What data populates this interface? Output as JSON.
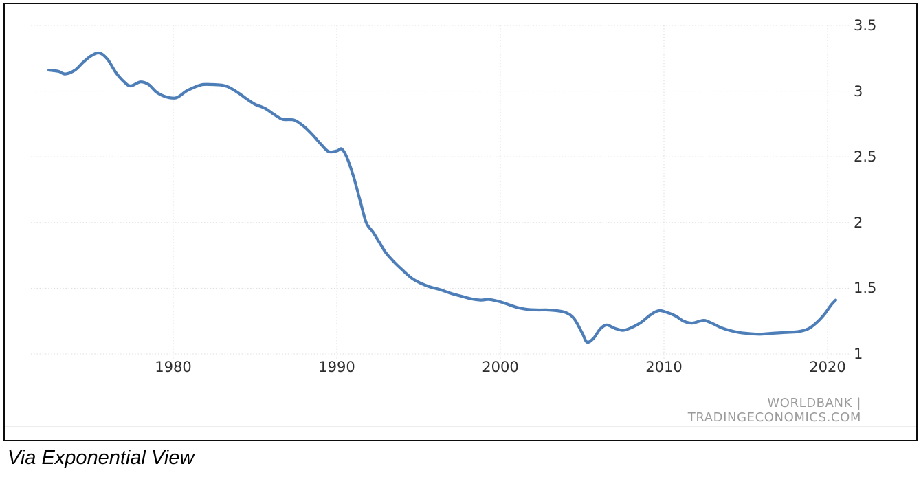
{
  "chart_data": {
    "type": "line",
    "title": "",
    "xlabel": "",
    "ylabel": "",
    "x_ticks": [
      1980,
      1990,
      2000,
      2010,
      2020
    ],
    "y_ticks": [
      3.5,
      3,
      2.5,
      2,
      1.5,
      1
    ],
    "xlim": [
      1971.3,
      2021.5
    ],
    "ylim": [
      1,
      3.5
    ],
    "grid": "dotted",
    "legend_position": "none",
    "series": [
      {
        "name": "value",
        "points": [
          [
            1972.4,
            3.16
          ],
          [
            1973.0,
            3.15
          ],
          [
            1973.4,
            3.13
          ],
          [
            1974.0,
            3.16
          ],
          [
            1974.5,
            3.22
          ],
          [
            1975.0,
            3.27
          ],
          [
            1975.5,
            3.29
          ],
          [
            1976.0,
            3.24
          ],
          [
            1976.5,
            3.14
          ],
          [
            1977.0,
            3.07
          ],
          [
            1977.4,
            3.04
          ],
          [
            1978.0,
            3.07
          ],
          [
            1978.5,
            3.05
          ],
          [
            1979.0,
            2.99
          ],
          [
            1979.6,
            2.955
          ],
          [
            1980.2,
            2.95
          ],
          [
            1980.8,
            3.0
          ],
          [
            1981.3,
            3.03
          ],
          [
            1981.8,
            3.05
          ],
          [
            1982.4,
            3.05
          ],
          [
            1983.0,
            3.045
          ],
          [
            1983.4,
            3.03
          ],
          [
            1984.0,
            2.985
          ],
          [
            1984.5,
            2.94
          ],
          [
            1985.0,
            2.9
          ],
          [
            1985.6,
            2.87
          ],
          [
            1986.2,
            2.82
          ],
          [
            1986.7,
            2.785
          ],
          [
            1987.4,
            2.78
          ],
          [
            1988.0,
            2.73
          ],
          [
            1988.5,
            2.67
          ],
          [
            1989.0,
            2.6
          ],
          [
            1989.5,
            2.54
          ],
          [
            1990.0,
            2.545
          ],
          [
            1990.3,
            2.56
          ],
          [
            1990.6,
            2.5
          ],
          [
            1991.0,
            2.36
          ],
          [
            1991.4,
            2.18
          ],
          [
            1991.8,
            2.0
          ],
          [
            1992.2,
            1.93
          ],
          [
            1992.6,
            1.85
          ],
          [
            1993.0,
            1.77
          ],
          [
            1993.5,
            1.7
          ],
          [
            1994.0,
            1.64
          ],
          [
            1994.6,
            1.575
          ],
          [
            1995.1,
            1.54
          ],
          [
            1995.7,
            1.51
          ],
          [
            1996.3,
            1.49
          ],
          [
            1997.0,
            1.46
          ],
          [
            1997.6,
            1.44
          ],
          [
            1998.2,
            1.42
          ],
          [
            1998.8,
            1.41
          ],
          [
            1999.3,
            1.415
          ],
          [
            1999.9,
            1.4
          ],
          [
            2000.4,
            1.38
          ],
          [
            2001.0,
            1.355
          ],
          [
            2001.6,
            1.34
          ],
          [
            2002.2,
            1.335
          ],
          [
            2002.8,
            1.335
          ],
          [
            2003.4,
            1.33
          ],
          [
            2004.0,
            1.315
          ],
          [
            2004.5,
            1.27
          ],
          [
            2005.0,
            1.16
          ],
          [
            2005.3,
            1.09
          ],
          [
            2005.7,
            1.12
          ],
          [
            2006.1,
            1.19
          ],
          [
            2006.5,
            1.22
          ],
          [
            2007.0,
            1.195
          ],
          [
            2007.5,
            1.18
          ],
          [
            2008.0,
            1.2
          ],
          [
            2008.6,
            1.24
          ],
          [
            2009.2,
            1.3
          ],
          [
            2009.7,
            1.33
          ],
          [
            2010.2,
            1.315
          ],
          [
            2010.7,
            1.29
          ],
          [
            2011.2,
            1.25
          ],
          [
            2011.7,
            1.235
          ],
          [
            2012.2,
            1.25
          ],
          [
            2012.5,
            1.255
          ],
          [
            2013.0,
            1.23
          ],
          [
            2013.5,
            1.2
          ],
          [
            2014.0,
            1.18
          ],
          [
            2014.6,
            1.163
          ],
          [
            2015.2,
            1.155
          ],
          [
            2015.8,
            1.15
          ],
          [
            2016.4,
            1.155
          ],
          [
            2017.0,
            1.16
          ],
          [
            2017.6,
            1.165
          ],
          [
            2018.2,
            1.17
          ],
          [
            2018.8,
            1.19
          ],
          [
            2019.3,
            1.235
          ],
          [
            2019.8,
            1.3
          ],
          [
            2020.2,
            1.37
          ],
          [
            2020.5,
            1.41
          ]
        ]
      }
    ]
  },
  "source": {
    "text": "WORLDBANK | TRADINGECONOMICS.COM"
  },
  "caption": {
    "text": "Via Exponential View"
  },
  "colors": {
    "line": "#4d7eb8",
    "grid": "#dedede",
    "tick_label": "#2e2e2e",
    "source_text": "#9b9b9b",
    "frame_border": "#0c0c0c",
    "background": "#ffffff",
    "caption_text": "#000000",
    "separator": "#ededed"
  }
}
